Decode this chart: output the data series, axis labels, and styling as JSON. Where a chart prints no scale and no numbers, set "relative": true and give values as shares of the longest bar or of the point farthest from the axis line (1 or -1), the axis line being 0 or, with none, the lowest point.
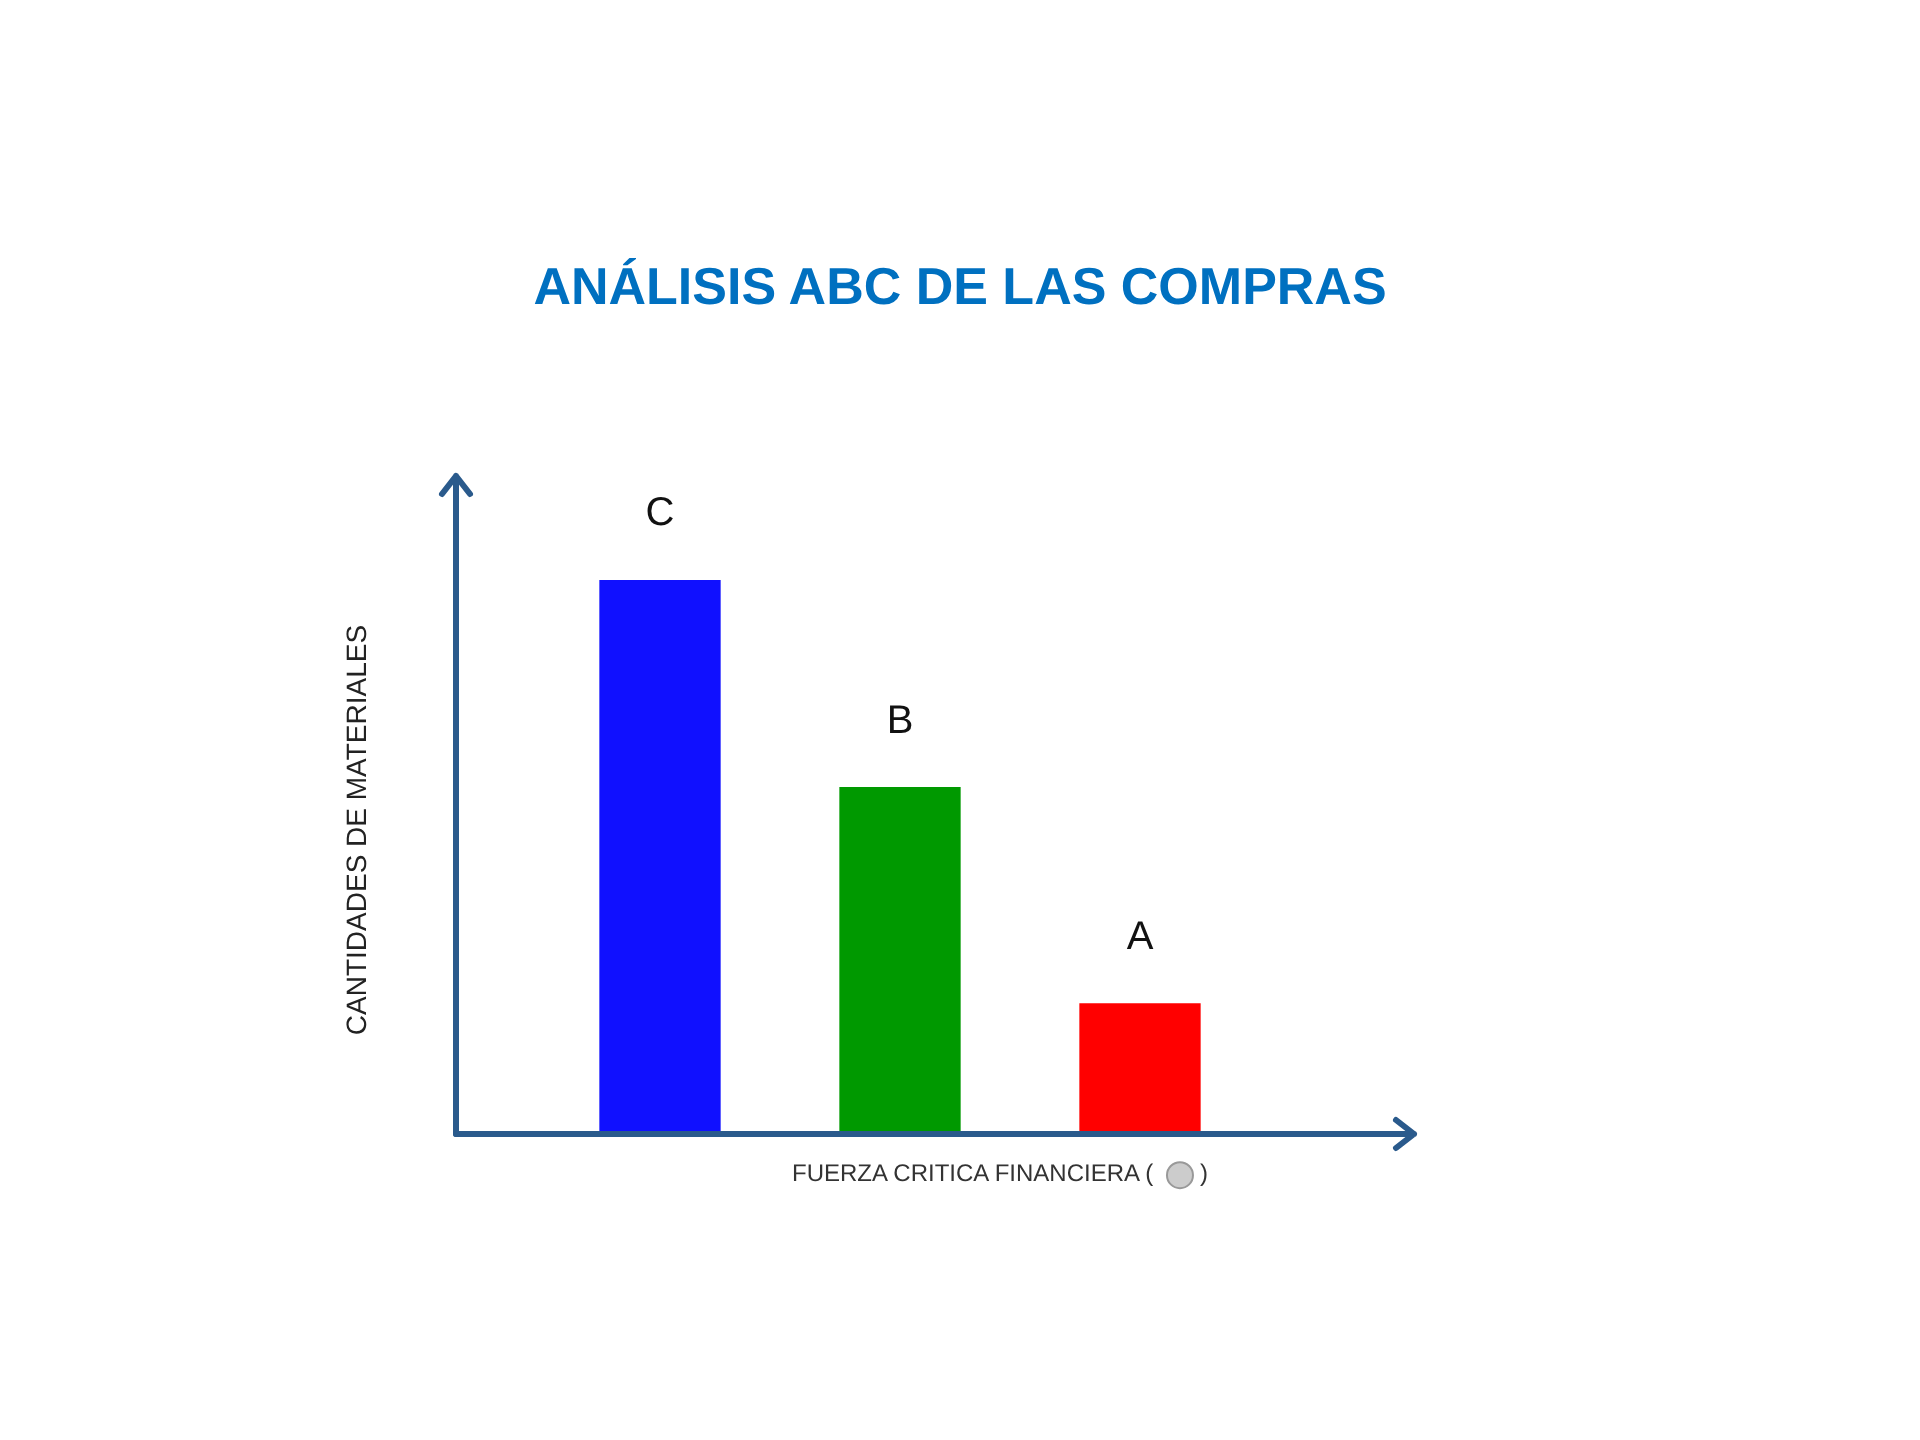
{
  "chart_data": {
    "type": "bar",
    "title": "ANÁLISIS ABC DE LAS COMPRAS",
    "xlabel": "FUERZA CRITICA FINANCIERA ( )",
    "ylabel": "CANTIDADES DE MATERIALES",
    "relative": true,
    "categories": [
      "C",
      "B",
      "A"
    ],
    "values": [
      1,
      0.625,
      0.235
    ],
    "colors": [
      "#1010ff",
      "#009900",
      "#ff0000"
    ],
    "legend": false
  }
}
